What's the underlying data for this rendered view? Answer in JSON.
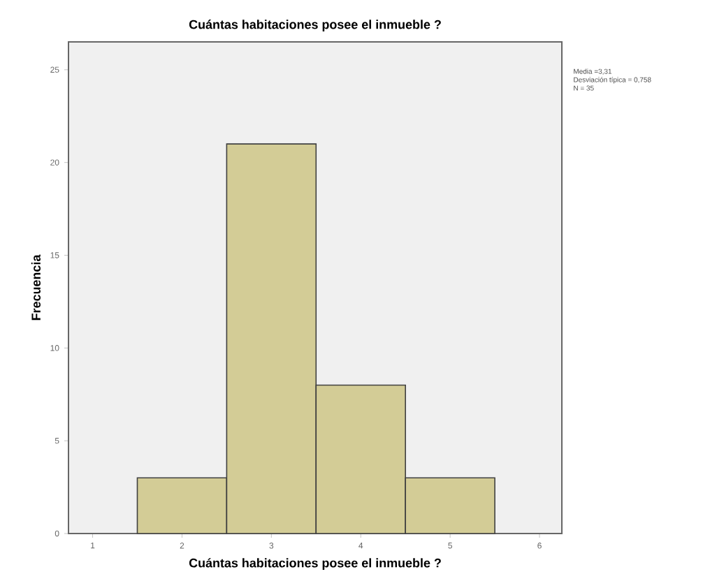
{
  "chart_data": {
    "type": "histogram",
    "title": "Cuántas habitaciones posee el inmueble ?",
    "xlabel": "Cuántas habitaciones posee el inmueble ?",
    "ylabel": "Frecuencia",
    "bins": [
      1.5,
      2.5,
      3.5,
      4.5,
      5.5
    ],
    "values": [
      3,
      21,
      8,
      3
    ],
    "color": "#d3cc96",
    "xlim": [
      0.73,
      6.25
    ],
    "ylim": [
      0,
      26.5
    ],
    "xticks": [
      1,
      2,
      3,
      4,
      5,
      6
    ],
    "yticks": [
      0,
      5,
      10,
      15,
      20,
      25
    ],
    "annotations": [
      "Media =3,31",
      "Desviación típica = 0,758",
      "N = 35"
    ]
  }
}
